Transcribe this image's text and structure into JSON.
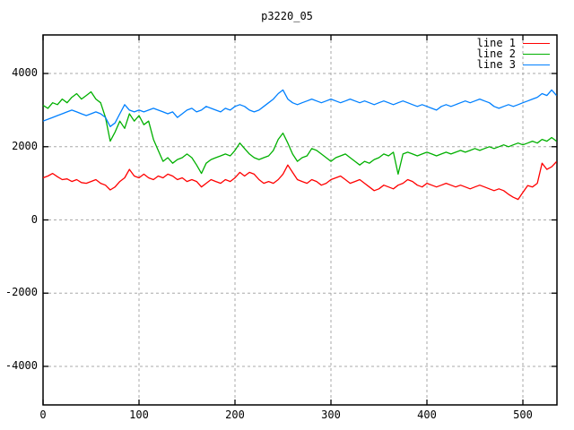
{
  "chart_data": {
    "type": "line",
    "title": "p3220_05",
    "xlabel": "",
    "ylabel": "",
    "xlim": [
      0,
      535.5
    ],
    "ylim": [
      -5053,
      5053
    ],
    "x_ticks": [
      0,
      100,
      200,
      300,
      400,
      500
    ],
    "y_ticks": [
      -4000,
      -2000,
      0,
      2000,
      4000
    ],
    "grid": true,
    "legend_position": "top-right-inside",
    "background_color": "#ffffff",
    "grid_color": "#a8a8a8",
    "border_color": "#000000",
    "x_start": 0,
    "x_step": 5,
    "series": [
      {
        "name": "line 1",
        "color": "#ff0000",
        "y": [
          1150,
          1200,
          1270,
          1180,
          1100,
          1120,
          1050,
          1100,
          1020,
          1000,
          1050,
          1100,
          1000,
          950,
          820,
          900,
          1050,
          1150,
          1380,
          1200,
          1150,
          1250,
          1150,
          1100,
          1200,
          1150,
          1250,
          1200,
          1100,
          1150,
          1050,
          1100,
          1050,
          900,
          1000,
          1100,
          1050,
          1000,
          1100,
          1050,
          1150,
          1300,
          1200,
          1300,
          1250,
          1100,
          1000,
          1050,
          1000,
          1100,
          1250,
          1500,
          1300,
          1100,
          1050,
          1000,
          1100,
          1050,
          950,
          1000,
          1100,
          1150,
          1200,
          1100,
          1000,
          1050,
          1100,
          1000,
          900,
          800,
          850,
          950,
          900,
          850,
          950,
          1000,
          1100,
          1050,
          950,
          900,
          1000,
          950,
          900,
          950,
          1000,
          950,
          900,
          950,
          900,
          850,
          900,
          950,
          900,
          850,
          800,
          850,
          800,
          700,
          620,
          560,
          750,
          940,
          900,
          1000,
          1550,
          1380,
          1450,
          1590
        ]
      },
      {
        "name": "line 2",
        "color": "#00b000",
        "y": [
          3130,
          3050,
          3200,
          3150,
          3300,
          3200,
          3350,
          3450,
          3300,
          3400,
          3500,
          3300,
          3200,
          2800,
          2150,
          2400,
          2700,
          2500,
          2900,
          2700,
          2850,
          2600,
          2700,
          2200,
          1900,
          1600,
          1700,
          1550,
          1650,
          1700,
          1800,
          1700,
          1500,
          1270,
          1550,
          1650,
          1700,
          1750,
          1800,
          1750,
          1900,
          2100,
          1950,
          1800,
          1700,
          1650,
          1700,
          1750,
          1900,
          2200,
          2370,
          2100,
          1800,
          1600,
          1700,
          1750,
          1950,
          1900,
          1800,
          1700,
          1600,
          1700,
          1750,
          1800,
          1700,
          1600,
          1500,
          1600,
          1550,
          1650,
          1700,
          1800,
          1750,
          1850,
          1250,
          1800,
          1850,
          1800,
          1750,
          1800,
          1850,
          1800,
          1750,
          1800,
          1850,
          1800,
          1850,
          1900,
          1850,
          1900,
          1950,
          1900,
          1950,
          2000,
          1950,
          2000,
          2050,
          2000,
          2050,
          2100,
          2050,
          2100,
          2150,
          2100,
          2200,
          2150,
          2250,
          2150
        ]
      },
      {
        "name": "line 3",
        "color": "#0080ff",
        "y": [
          2700,
          2750,
          2800,
          2850,
          2900,
          2950,
          3000,
          2950,
          2900,
          2850,
          2900,
          2950,
          2900,
          2800,
          2550,
          2650,
          2900,
          3150,
          3000,
          2950,
          3000,
          2950,
          3000,
          3050,
          3000,
          2950,
          2900,
          2950,
          2800,
          2900,
          3000,
          3050,
          2950,
          3000,
          3100,
          3050,
          3000,
          2950,
          3050,
          3000,
          3100,
          3150,
          3100,
          3000,
          2950,
          3000,
          3100,
          3200,
          3300,
          3450,
          3550,
          3300,
          3200,
          3150,
          3200,
          3250,
          3300,
          3250,
          3200,
          3250,
          3300,
          3250,
          3200,
          3250,
          3300,
          3250,
          3200,
          3250,
          3200,
          3150,
          3200,
          3250,
          3200,
          3150,
          3200,
          3250,
          3200,
          3150,
          3100,
          3150,
          3100,
          3050,
          3000,
          3100,
          3150,
          3100,
          3150,
          3200,
          3250,
          3200,
          3250,
          3300,
          3250,
          3200,
          3100,
          3050,
          3100,
          3150,
          3100,
          3150,
          3200,
          3250,
          3300,
          3350,
          3450,
          3400,
          3550,
          3400
        ]
      }
    ]
  }
}
